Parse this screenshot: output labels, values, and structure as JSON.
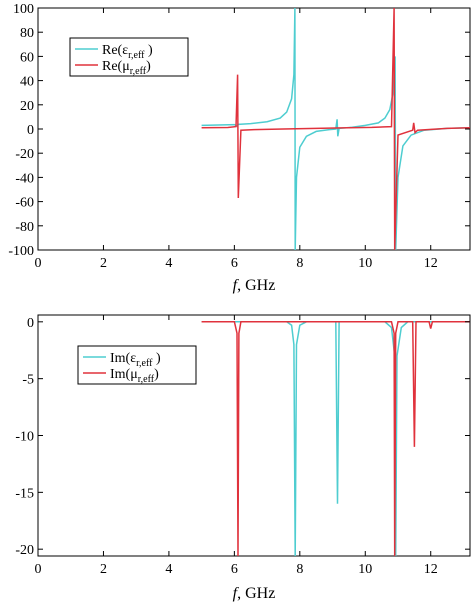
{
  "chart_data": [
    {
      "type": "line",
      "xlabel": "f, GHz",
      "xlabel_italic": "f",
      "xlabel_rest": ", GHz",
      "xlim": [
        0,
        13.2
      ],
      "ylim": [
        -100,
        100
      ],
      "xticks": [
        "0",
        "2",
        "4",
        "6",
        "8",
        "10",
        "12"
      ],
      "yticks": [
        "100",
        "80",
        "60",
        "40",
        "20",
        "0",
        "-20",
        "-40",
        "-60",
        "-80",
        "-100"
      ],
      "grid": false,
      "legend_position": "top-left",
      "legend": [
        {
          "prefix": "Re(ε",
          "sub": "r,eff",
          "suffix": " )",
          "color": "#4ecdd0"
        },
        {
          "prefix": "Re(μ",
          "sub": "r,eff",
          "suffix": ")",
          "color": "#e0323c"
        }
      ],
      "series": [
        {
          "name": "Re(εr,eff)",
          "color": "#4ecdd0",
          "points": [
            [
              5.0,
              3
            ],
            [
              5.5,
              3.3
            ],
            [
              6.0,
              3.6
            ],
            [
              6.08,
              2.5
            ],
            [
              6.12,
              3.8
            ],
            [
              6.5,
              4.5
            ],
            [
              7.0,
              6
            ],
            [
              7.4,
              9
            ],
            [
              7.6,
              14
            ],
            [
              7.75,
              25
            ],
            [
              7.82,
              45
            ],
            [
              7.85,
              100
            ],
            [
              7.86,
              -100
            ],
            [
              7.9,
              -40
            ],
            [
              8.0,
              -15
            ],
            [
              8.2,
              -6
            ],
            [
              8.5,
              -2
            ],
            [
              8.9,
              -0.5
            ],
            [
              9.1,
              0
            ],
            [
              9.14,
              8
            ],
            [
              9.16,
              -6
            ],
            [
              9.2,
              0.5
            ],
            [
              9.6,
              1.5
            ],
            [
              10.0,
              3
            ],
            [
              10.4,
              5
            ],
            [
              10.6,
              9
            ],
            [
              10.75,
              16
            ],
            [
              10.85,
              30
            ],
            [
              10.91,
              60
            ],
            [
              10.93,
              -100
            ],
            [
              11.0,
              -40
            ],
            [
              11.15,
              -14
            ],
            [
              11.4,
              -5
            ],
            [
              11.8,
              -1
            ],
            [
              12.5,
              0.5
            ],
            [
              13.2,
              1
            ]
          ]
        },
        {
          "name": "Re(μr,eff)",
          "color": "#e0323c",
          "points": [
            [
              5.0,
              1
            ],
            [
              5.8,
              1.2
            ],
            [
              6.05,
              2
            ],
            [
              6.1,
              45
            ],
            [
              6.12,
              -57
            ],
            [
              6.2,
              -1
            ],
            [
              6.6,
              -0.5
            ],
            [
              7.5,
              0
            ],
            [
              8.5,
              0.5
            ],
            [
              9.5,
              1
            ],
            [
              10.2,
              1.3
            ],
            [
              10.8,
              2
            ],
            [
              10.88,
              100
            ],
            [
              10.9,
              -100
            ],
            [
              11.0,
              -5
            ],
            [
              11.45,
              -1
            ],
            [
              11.48,
              5
            ],
            [
              11.52,
              -3
            ],
            [
              11.6,
              -1
            ],
            [
              12.5,
              0.5
            ],
            [
              13.2,
              1
            ]
          ]
        }
      ]
    },
    {
      "type": "line",
      "xlabel": "f, GHz",
      "xlabel_italic": "f",
      "xlabel_rest": ", GHz",
      "xlim": [
        0,
        13.2
      ],
      "ylim": [
        -20.6,
        0.6
      ],
      "xticks": [
        "0",
        "2",
        "4",
        "6",
        "8",
        "10",
        "12"
      ],
      "yticks": [
        "0",
        "-5",
        "-10",
        "-15",
        "-20"
      ],
      "grid": false,
      "legend_position": "top-left",
      "legend": [
        {
          "prefix": "Im(ε",
          "sub": "r,eff",
          "suffix": " )",
          "color": "#4ecdd0"
        },
        {
          "prefix": "Im(μ",
          "sub": "r,eff",
          "suffix": ")",
          "color": "#e0323c"
        }
      ],
      "series": [
        {
          "name": "Im(εr,eff)",
          "color": "#4ecdd0",
          "points": [
            [
              5.0,
              0
            ],
            [
              7.6,
              0
            ],
            [
              7.75,
              -0.3
            ],
            [
              7.82,
              -2
            ],
            [
              7.86,
              -20.6
            ],
            [
              7.9,
              -2
            ],
            [
              8.0,
              -0.3
            ],
            [
              8.2,
              0
            ],
            [
              9.1,
              0
            ],
            [
              9.15,
              -16
            ],
            [
              9.2,
              0
            ],
            [
              10.6,
              0
            ],
            [
              10.8,
              -0.5
            ],
            [
              10.9,
              -3
            ],
            [
              10.93,
              -20.6
            ],
            [
              10.97,
              -3
            ],
            [
              11.1,
              -0.5
            ],
            [
              11.3,
              0
            ],
            [
              13.2,
              0
            ]
          ]
        },
        {
          "name": "Im(μr,eff)",
          "color": "#e0323c",
          "points": [
            [
              5.0,
              0
            ],
            [
              6.0,
              0
            ],
            [
              6.08,
              -1
            ],
            [
              6.11,
              -20.6
            ],
            [
              6.14,
              -1
            ],
            [
              6.2,
              0
            ],
            [
              10.8,
              0
            ],
            [
              10.88,
              -1
            ],
            [
              10.9,
              -20.6
            ],
            [
              10.93,
              -1
            ],
            [
              11.0,
              0
            ],
            [
              11.45,
              0
            ],
            [
              11.5,
              -11
            ],
            [
              11.55,
              0
            ],
            [
              11.95,
              0
            ],
            [
              12.0,
              -0.6
            ],
            [
              12.05,
              0
            ],
            [
              13.2,
              0
            ]
          ]
        }
      ]
    }
  ]
}
